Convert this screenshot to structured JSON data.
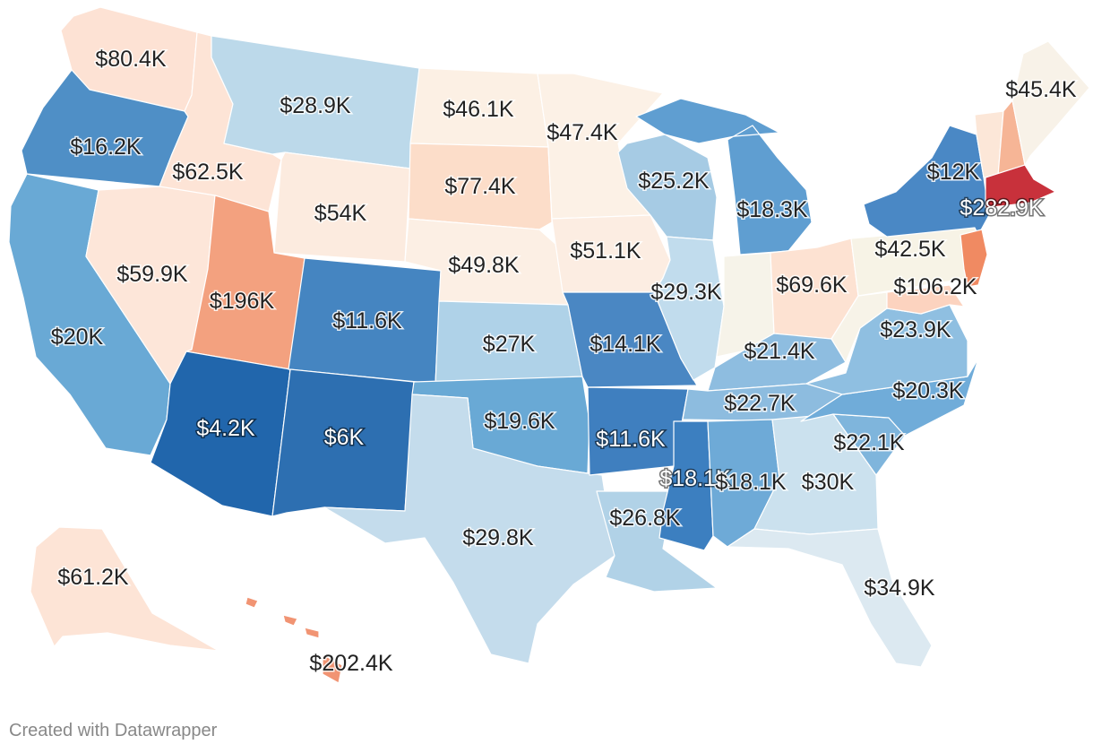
{
  "colors": {
    "low": "#2166ac",
    "midlow": "#5b9bd0",
    "light_blue": "#bcd8ea",
    "neutral": "#f7f3ea",
    "light_orange": "#fbdccb",
    "orange": "#f2957a",
    "high": "#c8313b"
  },
  "states": [
    {
      "id": "WA",
      "value": "$80.4K",
      "fill": "#fde2d4"
    },
    {
      "id": "OR",
      "value": "$16.2K",
      "fill": "#4f8fc6"
    },
    {
      "id": "CA",
      "value": "$20K",
      "fill": "#69a9d5"
    },
    {
      "id": "ID",
      "value": "$62.5K",
      "fill": "#fde4d6"
    },
    {
      "id": "NV",
      "value": "$59.9K",
      "fill": "#fde6d9"
    },
    {
      "id": "MT",
      "value": "$28.9K",
      "fill": "#bcd9ea"
    },
    {
      "id": "WY",
      "value": "$54K",
      "fill": "#fcebdf"
    },
    {
      "id": "UT",
      "value": "$196K",
      "fill": "#f3a17f"
    },
    {
      "id": "AZ",
      "value": "$4.2K",
      "fill": "#2166ac"
    },
    {
      "id": "CO",
      "value": "$11.6K",
      "fill": "#4585c1"
    },
    {
      "id": "NM",
      "value": "$6K",
      "fill": "#2d6fb1"
    },
    {
      "id": "ND",
      "value": "$46.1K",
      "fill": "#fcf0e4"
    },
    {
      "id": "SD",
      "value": "$77.4K",
      "fill": "#fcddc9"
    },
    {
      "id": "NE",
      "value": "$49.8K",
      "fill": "#fcefe4"
    },
    {
      "id": "KS",
      "value": "$27K",
      "fill": "#afd2e8"
    },
    {
      "id": "OK",
      "value": "$19.6K",
      "fill": "#69a9d5"
    },
    {
      "id": "TX",
      "value": "$29.8K",
      "fill": "#c4dcec"
    },
    {
      "id": "MN",
      "value": "$47.4K",
      "fill": "#fcf1e6"
    },
    {
      "id": "IA",
      "value": "$51.1K",
      "fill": "#fcede2"
    },
    {
      "id": "MO",
      "value": "$14.1K",
      "fill": "#4a87c3"
    },
    {
      "id": "AR",
      "value": "$11.6K",
      "fill": "#3f7fbf"
    },
    {
      "id": "LA",
      "value": "$26.8K",
      "fill": "#b1d2e7"
    },
    {
      "id": "WI",
      "value": "$25.2K",
      "fill": "#a6cbe4"
    },
    {
      "id": "IL",
      "value": "$29.3K",
      "fill": "#c1dced"
    },
    {
      "id": "MI",
      "value": "$18.3K",
      "fill": "#5f9ed1"
    },
    {
      "id": "IN",
      "value": "",
      "fill": "#f6f3e9"
    },
    {
      "id": "OH",
      "value": "$69.6K",
      "fill": "#fde2d2"
    },
    {
      "id": "KY",
      "value": "$21.4K",
      "fill": "#8ebde0"
    },
    {
      "id": "TN",
      "value": "$22.7K",
      "fill": "#8dbcdf"
    },
    {
      "id": "MS",
      "value": "$18.1K",
      "fill": "#3c7fc0"
    },
    {
      "id": "AL",
      "value": "$18.1K",
      "fill": "#6eaad7"
    },
    {
      "id": "GA",
      "value": "$30K",
      "fill": "#cbe1ee"
    },
    {
      "id": "FL",
      "value": "$34.9K",
      "fill": "#dce9f1"
    },
    {
      "id": "SC",
      "value": "$22.1K",
      "fill": "#7fb5dc"
    },
    {
      "id": "NC",
      "value": "$20.3K",
      "fill": "#70acd9"
    },
    {
      "id": "VA",
      "value": "$23.9K",
      "fill": "#8fbfe1"
    },
    {
      "id": "WV",
      "value": "",
      "fill": "#f7f3e8"
    },
    {
      "id": "PA",
      "value": "$42.5K",
      "fill": "#f7f3e6"
    },
    {
      "id": "NY",
      "value": "$12K",
      "fill": "#4a88c5"
    },
    {
      "id": "VT",
      "value": "",
      "fill": "#fce7d8"
    },
    {
      "id": "NH",
      "value": "",
      "fill": "#f6b596"
    },
    {
      "id": "ME",
      "value": "$45.4K",
      "fill": "#f8f2e8"
    },
    {
      "id": "MA",
      "value": "$282.9K",
      "fill": "#c8313b"
    },
    {
      "id": "NJ",
      "value": "$106.2K",
      "fill": "#f08a62"
    },
    {
      "id": "MD",
      "value": "",
      "fill": "#fcd3bf"
    },
    {
      "id": "AK",
      "value": "$61.2K",
      "fill": "#fde4d6"
    },
    {
      "id": "HI",
      "value": "$202.4K",
      "fill": "#f19473"
    }
  ],
  "credit": "Created with Datawrapper"
}
